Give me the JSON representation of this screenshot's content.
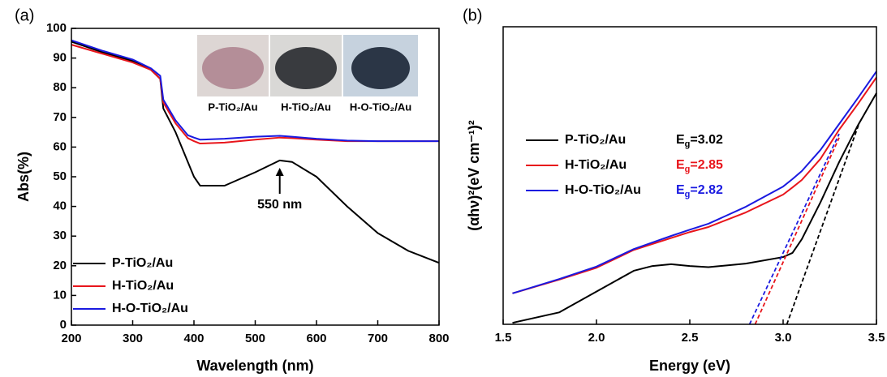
{
  "chart_data": [
    {
      "type": "line",
      "panel_label": "(a)",
      "xlabel": "Wavelength (nm)",
      "ylabel": "Abs(%)",
      "x": [
        200,
        250,
        300,
        330,
        345,
        350,
        370,
        390,
        400,
        410,
        450,
        500,
        540,
        560,
        600,
        650,
        700,
        750,
        800
      ],
      "series": [
        {
          "name": "P-TiO₂/Au",
          "color": "#000000",
          "values": [
            95.5,
            92,
            89,
            86,
            83,
            73,
            65,
            55,
            50,
            47,
            47,
            51.5,
            55.5,
            55,
            50,
            40,
            31,
            25,
            21
          ]
        },
        {
          "name": "H-TiO₂/Au",
          "color": "#e8151b",
          "values": [
            94.5,
            91.5,
            88.5,
            86,
            83,
            75,
            68,
            63,
            62,
            61.2,
            61.5,
            62.5,
            63.2,
            63,
            62.5,
            62,
            62,
            62,
            62
          ]
        },
        {
          "name": "H-O-TiO₂/Au",
          "color": "#1a1ae0",
          "values": [
            96,
            92.5,
            89.5,
            86.5,
            84,
            76,
            69,
            64,
            63.2,
            62.5,
            62.8,
            63.5,
            63.8,
            63.5,
            62.8,
            62.2,
            62,
            62,
            62
          ]
        }
      ],
      "xlim": [
        200,
        800
      ],
      "xticks": [
        200,
        300,
        400,
        500,
        600,
        700,
        800
      ],
      "ylim": [
        0,
        100
      ],
      "yticks": [
        0,
        10,
        20,
        30,
        40,
        50,
        60,
        70,
        80,
        90,
        100
      ],
      "legend": "lower left",
      "annotation": {
        "text": "550 nm",
        "x": 540,
        "y": 53
      },
      "inset_labels": [
        "P-TiO₂/Au",
        "H-TiO₂/Au",
        "H-O-TiO₂/Au"
      ]
    },
    {
      "type": "line",
      "panel_label": "(b)",
      "xlabel": "Energy (eV)",
      "ylabel": "(αhν)²(eV cm⁻¹)²",
      "x": [
        1.55,
        1.8,
        2.0,
        2.2,
        2.3,
        2.4,
        2.5,
        2.6,
        2.8,
        3.0,
        3.05,
        3.1,
        3.2,
        3.3,
        3.4,
        3.5
      ],
      "series": [
        {
          "name": "P-TiO₂/Au",
          "color": "#000000",
          "values": [
            0.5,
            4,
            11,
            18,
            19.6,
            20.2,
            19.6,
            19.2,
            20.4,
            22.6,
            24,
            28.6,
            41,
            54.5,
            66.8,
            77.7
          ],
          "eg": 3.02,
          "tangent_end": [
            3.41,
            68
          ],
          "eg_label": {
            "base": "E",
            "sub": "g",
            "rest": "=3.02"
          }
        },
        {
          "name": "H-TiO₂/Au",
          "color": "#e8151b",
          "values": [
            10.4,
            15,
            19,
            25,
            27,
            29,
            31,
            32.7,
            37.6,
            43.6,
            46,
            48.5,
            55.6,
            65.4,
            74,
            83
          ],
          "eg": 2.85,
          "tangent_end": [
            3.3,
            62.7
          ],
          "eg_label": {
            "base": "E",
            "sub": "g",
            "rest": "=2.85"
          }
        },
        {
          "name": "H-O-TiO₂/Au",
          "color": "#1a1ae0",
          "values": [
            10.4,
            15.2,
            19.4,
            25.3,
            27.5,
            29.7,
            31.8,
            33.8,
            39.5,
            46.3,
            48.8,
            51.5,
            58.6,
            67.3,
            76,
            85
          ],
          "eg": 2.82,
          "tangent_end": [
            3.3,
            64
          ],
          "eg_label": {
            "base": "E",
            "sub": "g",
            "rest": "=2.82"
          }
        }
      ],
      "xlim": [
        1.5,
        3.5
      ],
      "xticks": [
        1.5,
        {
          "value": 2,
          "label": "2.0"
        },
        2.5,
        {
          "value": 3,
          "label": "3.0"
        },
        3.5
      ],
      "ylim": [
        0,
        100
      ],
      "legend": "center left"
    }
  ]
}
